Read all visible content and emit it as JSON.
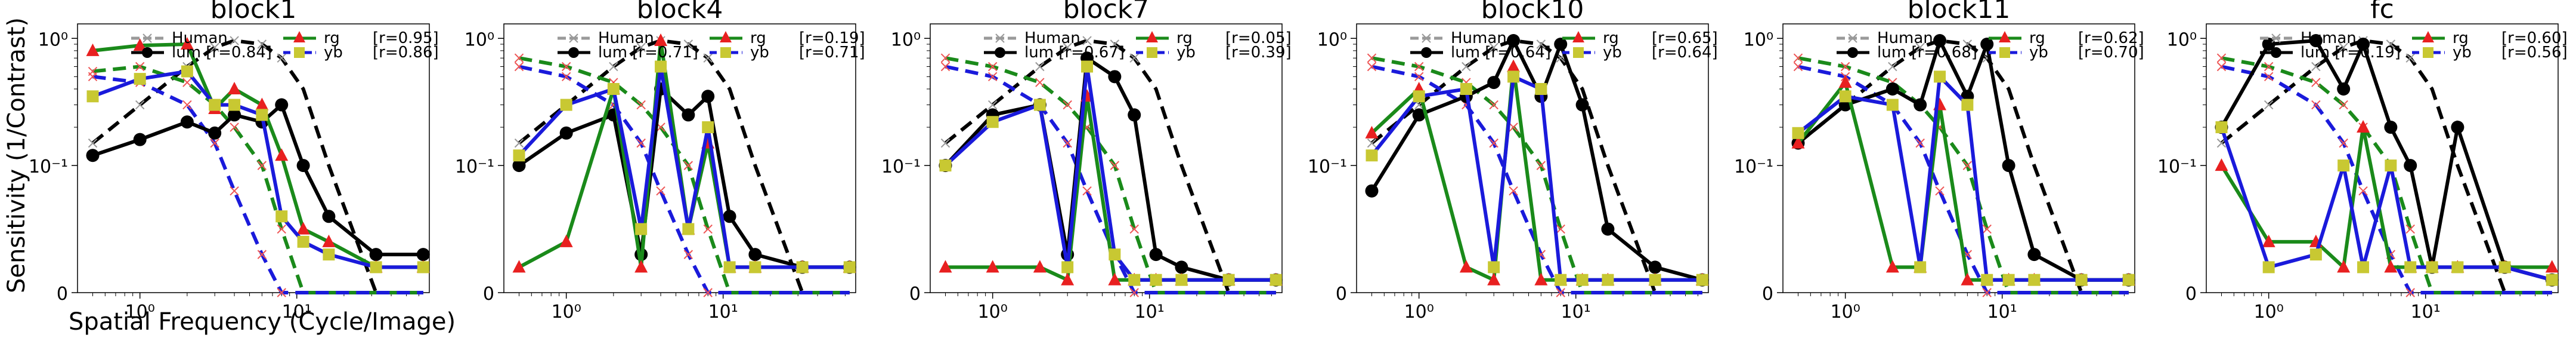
{
  "figure": {
    "ylabel": "Sensitivity (1/Contrast)",
    "xlabel": "Spatial Frequency (Cycle/Image)"
  },
  "colors": {
    "human": "#000000",
    "lum": "#000000",
    "rg": "#1a8a1a",
    "yb": "#1a1adb",
    "rg_marker": "#e82020",
    "yb_marker": "#c8c832"
  },
  "chart_data": [
    {
      "type": "line",
      "title": "block1",
      "x_scale": "log",
      "y_scale": "symlog",
      "legend": {
        "position": "top",
        "entries": [
          "Human",
          "lum [r=0.84]",
          "rg",
          "[r=0.95]",
          "yb",
          "[r=0.86]"
        ]
      },
      "x": [
        0.5,
        1,
        2,
        3,
        4,
        6,
        8,
        11,
        16,
        32,
        64
      ],
      "human": {
        "lum": [
          0.15,
          0.3,
          0.6,
          0.85,
          0.96,
          0.9,
          0.7,
          0.4,
          0.1,
          0,
          0
        ],
        "rg": [
          0.55,
          0.6,
          0.45,
          0.3,
          0.2,
          0.1,
          0.05,
          0,
          0,
          0,
          0
        ],
        "yb": [
          0.5,
          0.45,
          0.3,
          0.15,
          0.08,
          0.03,
          0,
          0,
          0,
          0,
          0
        ]
      },
      "series": [
        {
          "name": "lum",
          "values": [
            0.12,
            0.16,
            0.22,
            0.18,
            0.25,
            0.22,
            0.3,
            0.1,
            0.06,
            0.03,
            0.03
          ]
        },
        {
          "name": "rg",
          "values": [
            0.8,
            0.88,
            0.9,
            0.28,
            0.4,
            0.3,
            0.12,
            0.05,
            0.04,
            0.02,
            0.02
          ]
        },
        {
          "name": "yb",
          "values": [
            0.35,
            0.48,
            0.55,
            0.3,
            0.3,
            0.25,
            0.06,
            0.04,
            0.03,
            0.02,
            0.02
          ]
        }
      ],
      "ytick_labels": [
        "10⁰",
        "10⁻¹",
        "0"
      ],
      "xtick_labels": [
        "10⁰",
        "10¹"
      ]
    },
    {
      "type": "line",
      "title": "block4",
      "x_scale": "log",
      "y_scale": "symlog",
      "legend": {
        "position": "top",
        "entries": [
          "Human",
          "lum [r=0.71]",
          "rg",
          "[r=0.19]",
          "yb",
          "[r=0.71]"
        ]
      },
      "x": [
        0.5,
        1,
        2,
        3,
        4,
        6,
        8,
        11,
        16,
        32,
        64
      ],
      "human": {
        "lum": [
          0.15,
          0.3,
          0.6,
          0.85,
          0.96,
          0.9,
          0.7,
          0.4,
          0.1,
          0,
          0
        ],
        "rg": [
          0.7,
          0.6,
          0.45,
          0.3,
          0.2,
          0.1,
          0.05,
          0,
          0,
          0,
          0
        ],
        "yb": [
          0.6,
          0.5,
          0.3,
          0.15,
          0.08,
          0.03,
          0,
          0,
          0,
          0,
          0
        ]
      },
      "series": [
        {
          "name": "lum",
          "values": [
            0.1,
            0.18,
            0.25,
            0.03,
            0.4,
            0.25,
            0.35,
            0.06,
            0.03,
            0.02,
            0.02
          ]
        },
        {
          "name": "rg",
          "values": [
            0.02,
            0.04,
            0.4,
            0.02,
            0.96,
            0.05,
            0.15,
            0.02,
            0.02,
            0.02,
            0.02
          ]
        },
        {
          "name": "yb",
          "values": [
            0.12,
            0.3,
            0.4,
            0.05,
            0.6,
            0.05,
            0.2,
            0.02,
            0.02,
            0.02,
            0.02
          ]
        }
      ],
      "ytick_labels": [
        "10⁰",
        "10⁻¹",
        "0"
      ],
      "xtick_labels": [
        "10⁰",
        "10¹"
      ]
    },
    {
      "type": "line",
      "title": "block7",
      "x_scale": "log",
      "y_scale": "symlog",
      "legend": {
        "position": "top",
        "entries": [
          "Human",
          "lum [r=0.67]",
          "rg",
          "[r=0.05]",
          "yb",
          "[r=0.39]"
        ]
      },
      "x": [
        0.5,
        1,
        2,
        3,
        4,
        6,
        8,
        11,
        16,
        32,
        64
      ],
      "human": {
        "lum": [
          0.15,
          0.3,
          0.6,
          0.85,
          0.96,
          0.9,
          0.7,
          0.4,
          0.1,
          0,
          0
        ],
        "rg": [
          0.7,
          0.6,
          0.45,
          0.3,
          0.2,
          0.1,
          0.05,
          0,
          0,
          0,
          0
        ],
        "yb": [
          0.6,
          0.5,
          0.3,
          0.15,
          0.08,
          0.03,
          0,
          0,
          0,
          0,
          0
        ]
      },
      "series": [
        {
          "name": "lum",
          "values": [
            0.1,
            0.25,
            0.3,
            0.03,
            0.7,
            0.5,
            0.25,
            0.03,
            0.02,
            0.01,
            0.01
          ]
        },
        {
          "name": "rg",
          "values": [
            0.02,
            0.02,
            0.02,
            0.01,
            0.35,
            0.01,
            0.01,
            0.01,
            0.01,
            0.01,
            0.01
          ]
        },
        {
          "name": "yb",
          "values": [
            0.1,
            0.22,
            0.3,
            0.02,
            0.6,
            0.03,
            0.01,
            0.01,
            0.01,
            0.01,
            0.01
          ]
        }
      ],
      "ytick_labels": [
        "10⁰",
        "10⁻¹",
        "0"
      ],
      "xtick_labels": [
        "10⁰",
        "10¹"
      ]
    },
    {
      "type": "line",
      "title": "block10",
      "x_scale": "log",
      "y_scale": "symlog",
      "legend": {
        "position": "top",
        "entries": [
          "Human",
          "lum [r=0.64]",
          "rg",
          "[r=0.65]",
          "yb",
          "[r=0.64]"
        ]
      },
      "x": [
        0.5,
        1,
        2,
        3,
        4,
        6,
        8,
        11,
        16,
        32,
        64
      ],
      "human": {
        "lum": [
          0.15,
          0.3,
          0.6,
          0.85,
          0.96,
          0.9,
          0.7,
          0.4,
          0.1,
          0,
          0
        ],
        "rg": [
          0.7,
          0.6,
          0.45,
          0.3,
          0.2,
          0.1,
          0.05,
          0,
          0,
          0,
          0
        ],
        "yb": [
          0.6,
          0.5,
          0.3,
          0.15,
          0.08,
          0.03,
          0,
          0,
          0,
          0,
          0
        ]
      },
      "series": [
        {
          "name": "lum",
          "values": [
            0.08,
            0.25,
            0.35,
            0.45,
            0.96,
            0.35,
            0.9,
            0.3,
            0.05,
            0.02,
            0.01
          ]
        },
        {
          "name": "rg",
          "values": [
            0.18,
            0.4,
            0.02,
            0.01,
            0.6,
            0.01,
            0.01,
            0.01,
            0.01,
            0.01,
            0.01
          ]
        },
        {
          "name": "yb",
          "values": [
            0.12,
            0.35,
            0.4,
            0.02,
            0.5,
            0.4,
            0.01,
            0.01,
            0.01,
            0.01,
            0.01
          ]
        }
      ],
      "ytick_labels": [
        "10⁰",
        "10⁻¹",
        "0"
      ],
      "xtick_labels": [
        "10⁰",
        "10¹"
      ]
    },
    {
      "type": "line",
      "title": "block11",
      "x_scale": "log",
      "y_scale": "symlog",
      "legend": {
        "position": "top",
        "entries": [
          "Human",
          "lum [r=0.68]",
          "rg",
          "[r=0.62]",
          "yb",
          "[r=0.70]"
        ]
      },
      "x": [
        0.5,
        1,
        2,
        3,
        4,
        6,
        8,
        11,
        16,
        32,
        64
      ],
      "human": {
        "lum": [
          0.15,
          0.3,
          0.6,
          0.85,
          0.96,
          0.9,
          0.7,
          0.4,
          0.1,
          0,
          0
        ],
        "rg": [
          0.7,
          0.6,
          0.45,
          0.3,
          0.2,
          0.1,
          0.05,
          0,
          0,
          0,
          0
        ],
        "yb": [
          0.6,
          0.5,
          0.3,
          0.15,
          0.08,
          0.03,
          0,
          0,
          0,
          0,
          0
        ]
      },
      "series": [
        {
          "name": "lum",
          "values": [
            0.15,
            0.3,
            0.4,
            0.3,
            0.96,
            0.35,
            0.9,
            0.1,
            0.03,
            0.01,
            0.01
          ]
        },
        {
          "name": "rg",
          "values": [
            0.15,
            0.45,
            0.02,
            0.02,
            0.3,
            0.01,
            0.01,
            0.01,
            0.01,
            0.01,
            0.01
          ]
        },
        {
          "name": "yb",
          "values": [
            0.18,
            0.35,
            0.3,
            0.02,
            0.5,
            0.3,
            0.01,
            0.01,
            0.01,
            0.01,
            0.01
          ]
        }
      ],
      "ytick_labels": [
        "10⁰",
        "10⁻¹",
        "0"
      ],
      "xtick_labels": [
        "10⁰",
        "10¹"
      ]
    },
    {
      "type": "line",
      "title": "fc",
      "x_scale": "log",
      "y_scale": "symlog",
      "legend": {
        "position": "top",
        "entries": [
          "Human",
          "lum [r=0.19]",
          "rg",
          "[r=0.60]",
          "yb",
          "[r=0.56]"
        ]
      },
      "x": [
        0.5,
        1,
        2,
        3,
        4,
        6,
        8,
        11,
        16,
        32,
        64
      ],
      "human": {
        "lum": [
          0.15,
          0.3,
          0.6,
          0.85,
          0.96,
          0.9,
          0.7,
          0.4,
          0.1,
          0,
          0
        ],
        "rg": [
          0.7,
          0.6,
          0.45,
          0.3,
          0.2,
          0.1,
          0.05,
          0,
          0,
          0,
          0
        ],
        "yb": [
          0.6,
          0.5,
          0.3,
          0.15,
          0.08,
          0.03,
          0,
          0,
          0,
          0,
          0
        ]
      },
      "series": [
        {
          "name": "lum",
          "values": [
            0.2,
            0.9,
            0.96,
            0.4,
            0.9,
            0.2,
            0.1,
            0.02,
            0.2,
            0.02,
            0.01
          ]
        },
        {
          "name": "rg",
          "values": [
            0.1,
            0.04,
            0.04,
            0.02,
            0.2,
            0.02,
            0.02,
            0.02,
            0.02,
            0.02,
            0.02
          ]
        },
        {
          "name": "yb",
          "values": [
            0.2,
            0.02,
            0.03,
            0.1,
            0.02,
            0.1,
            0.02,
            0.02,
            0.02,
            0.02,
            0.01
          ]
        }
      ],
      "ytick_labels": [
        "10⁰",
        "10⁻¹",
        "0"
      ],
      "xtick_labels": [
        "10⁰",
        "10¹"
      ]
    }
  ]
}
